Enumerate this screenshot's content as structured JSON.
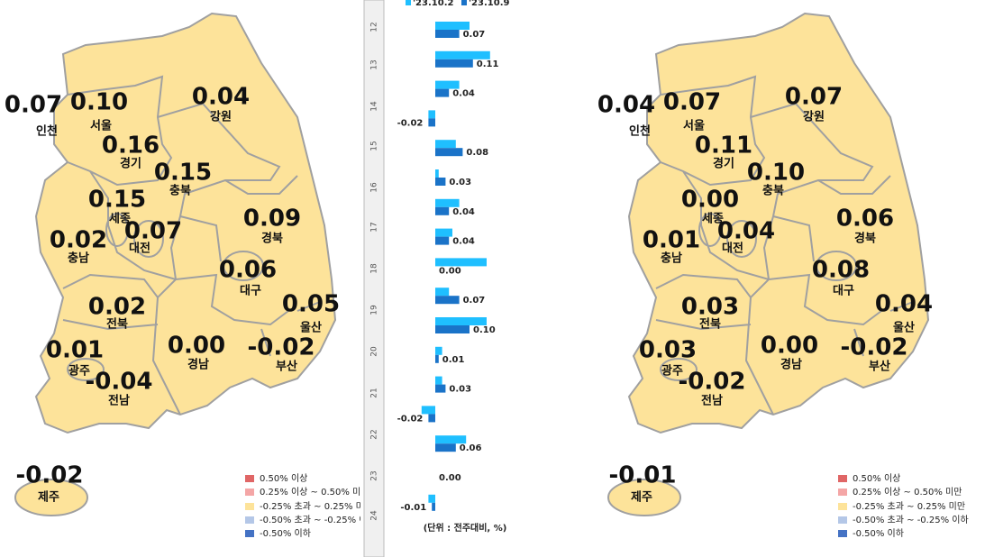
{
  "maps": [
    {
      "regions": [
        {
          "name": "인천",
          "value": "0.07"
        },
        {
          "name": "서울",
          "value": "0.10"
        },
        {
          "name": "경기",
          "value": "0.16"
        },
        {
          "name": "강원",
          "value": "0.04"
        },
        {
          "name": "충북",
          "value": "0.15"
        },
        {
          "name": "세종",
          "value": "0.15"
        },
        {
          "name": "대전",
          "value": "0.07"
        },
        {
          "name": "충남",
          "value": "0.02"
        },
        {
          "name": "경북",
          "value": "0.09"
        },
        {
          "name": "대구",
          "value": "0.06"
        },
        {
          "name": "울산",
          "value": "0.05"
        },
        {
          "name": "전북",
          "value": "0.02"
        },
        {
          "name": "광주",
          "value": "0.01"
        },
        {
          "name": "전남",
          "value": "-0.04"
        },
        {
          "name": "경남",
          "value": "0.00"
        },
        {
          "name": "부산",
          "value": "-0.02"
        },
        {
          "name": "제주",
          "value": "-0.02"
        }
      ]
    },
    {
      "regions": [
        {
          "name": "인천",
          "value": "0.04"
        },
        {
          "name": "서울",
          "value": "0.07"
        },
        {
          "name": "경기",
          "value": "0.11"
        },
        {
          "name": "강원",
          "value": "0.07"
        },
        {
          "name": "충북",
          "value": "0.10"
        },
        {
          "name": "세종",
          "value": "0.00"
        },
        {
          "name": "대전",
          "value": "0.04"
        },
        {
          "name": "충남",
          "value": "0.01"
        },
        {
          "name": "경북",
          "value": "0.06"
        },
        {
          "name": "대구",
          "value": "0.08"
        },
        {
          "name": "울산",
          "value": "0.04"
        },
        {
          "name": "전북",
          "value": "0.03"
        },
        {
          "name": "광주",
          "value": "0.03"
        },
        {
          "name": "전남",
          "value": "-0.02"
        },
        {
          "name": "경남",
          "value": "0.00"
        },
        {
          "name": "부산",
          "value": "-0.02"
        },
        {
          "name": "제주",
          "value": "-0.01"
        }
      ]
    }
  ],
  "legend": [
    {
      "label": "0.50% 이상",
      "color": "#e06666"
    },
    {
      "label": "0.25% 이상 ~ 0.50% 미만",
      "color": "#f4a6a6"
    },
    {
      "label": "-0.25% 초과 ~ 0.25% 미만",
      "color": "#fde39a"
    },
    {
      "label": "-0.50% 초과 ~ -0.25% 이하",
      "color": "#b4c7e7"
    },
    {
      "label": "-0.50% 이하",
      "color": "#4472c4"
    }
  ],
  "row_numbers": [
    "12",
    "13",
    "14",
    "15",
    "16",
    "17",
    "18",
    "19",
    "20",
    "21",
    "22",
    "23",
    "24"
  ],
  "chart_data": {
    "type": "bar",
    "orientation": "horizontal",
    "categories": [
      null,
      null,
      null,
      null,
      null,
      null,
      null,
      null,
      null,
      null,
      null,
      null,
      null,
      null,
      null,
      null,
      null
    ],
    "series": [
      {
        "name": "'23.10.2",
        "color": "#1fbfff",
        "values": [
          0.1,
          0.16,
          0.07,
          -0.02,
          0.06,
          0.01,
          0.07,
          0.05,
          0.15,
          0.04,
          0.15,
          0.02,
          0.02,
          -0.04,
          0.09,
          0,
          -0.02
        ]
      },
      {
        "name": "'23.10.9",
        "color": "#1a73c8",
        "values": [
          0.07,
          0.11,
          0.04,
          -0.02,
          0.08,
          0.03,
          0.04,
          0.04,
          0,
          0.07,
          0.1,
          0.01,
          0.03,
          -0.02,
          0.06,
          0,
          -0.01
        ],
        "value_labels": [
          "0.07",
          "0.11",
          "0.04",
          "-0.02",
          "0.08",
          "0.03",
          "0.04",
          "0.04",
          "0.00",
          "0.07",
          "0.10",
          "0.01",
          "0.03",
          "-0.02",
          "0.06",
          "0.00",
          "-0.01"
        ]
      }
    ],
    "xlim": [
      -0.05,
      0.2
    ],
    "note": "(단위 : 전주대비, %)"
  }
}
